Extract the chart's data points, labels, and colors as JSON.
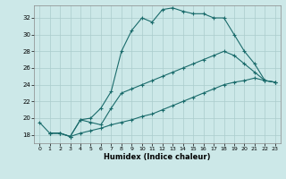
{
  "xlabel": "Humidex (Indice chaleur)",
  "bg_color": "#cce8e8",
  "grid_color": "#aacccc",
  "line_color": "#1a6b6b",
  "xlim": [
    -0.5,
    23.5
  ],
  "ylim": [
    17.0,
    33.5
  ],
  "yticks": [
    18,
    20,
    22,
    24,
    26,
    28,
    30,
    32
  ],
  "xticks": [
    0,
    1,
    2,
    3,
    4,
    5,
    6,
    7,
    8,
    9,
    10,
    11,
    12,
    13,
    14,
    15,
    16,
    17,
    18,
    19,
    20,
    21,
    22,
    23
  ],
  "curve1_x": [
    0,
    1,
    2,
    3,
    4,
    5,
    6,
    7,
    8,
    9,
    10,
    11,
    12,
    13,
    14,
    15,
    16,
    17,
    18,
    19,
    20,
    21,
    22,
    23
  ],
  "curve1_y": [
    19.5,
    18.2,
    18.2,
    17.8,
    19.8,
    20.0,
    21.2,
    23.2,
    28.0,
    30.5,
    32.0,
    31.5,
    33.0,
    33.2,
    32.8,
    32.5,
    32.5,
    32.0,
    32.0,
    30.0,
    28.0,
    26.5,
    24.5,
    24.3
  ],
  "curve2_x": [
    1,
    2,
    3,
    4,
    5,
    6,
    7,
    8,
    9,
    10,
    11,
    12,
    13,
    14,
    15,
    16,
    17,
    18,
    19,
    20,
    21,
    22,
    23
  ],
  "curve2_y": [
    18.2,
    18.2,
    17.8,
    19.8,
    19.5,
    19.2,
    21.2,
    23.0,
    23.5,
    24.0,
    24.5,
    25.0,
    25.5,
    26.0,
    26.5,
    27.0,
    27.5,
    28.0,
    27.5,
    26.5,
    25.5,
    24.5,
    24.3
  ],
  "curve3_x": [
    1,
    2,
    3,
    4,
    5,
    6,
    7,
    8,
    9,
    10,
    11,
    12,
    13,
    14,
    15,
    16,
    17,
    18,
    19,
    20,
    21,
    22,
    23
  ],
  "curve3_y": [
    18.2,
    18.2,
    17.8,
    18.2,
    18.5,
    18.8,
    19.2,
    19.5,
    19.8,
    20.2,
    20.5,
    21.0,
    21.5,
    22.0,
    22.5,
    23.0,
    23.5,
    24.0,
    24.3,
    24.5,
    24.8,
    24.5,
    24.3
  ]
}
